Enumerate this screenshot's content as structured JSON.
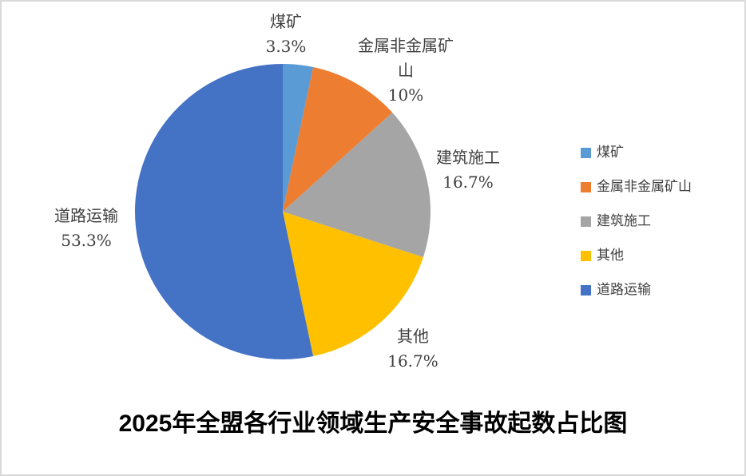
{
  "title": "2025年全盟各行业领域生产安全事故起数占比图",
  "frame": {
    "background": "#ffffff",
    "border_color": "#d9d9d9"
  },
  "label_text_color": "#404040",
  "title_color": "#000000",
  "chart_data": {
    "type": "pie",
    "title": "2025年全盟各行业领域生产安全事故起数占比图",
    "start_angle_deg": 0,
    "direction": "clockwise",
    "legend_position": "right",
    "slices": [
      {
        "key": "coal-mine",
        "label": "煤矿",
        "value": 3.3,
        "display": "3.3%",
        "color": "#5B9BD5"
      },
      {
        "key": "metal-nonmetal-mine",
        "label": "金属非金属矿山",
        "value": 10,
        "display": "10%",
        "color": "#ED7D31"
      },
      {
        "key": "construction",
        "label": "建筑施工",
        "value": 16.7,
        "display": "16.7%",
        "color": "#A5A5A5"
      },
      {
        "key": "other",
        "label": "其他",
        "value": 16.7,
        "display": "16.7%",
        "color": "#FFC000"
      },
      {
        "key": "road-transport",
        "label": "道路运输",
        "value": 53.3,
        "display": "53.3%",
        "color": "#4472C4"
      }
    ]
  }
}
